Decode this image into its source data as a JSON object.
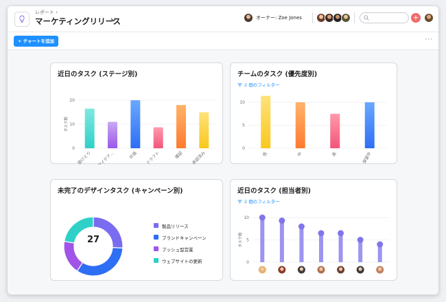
{
  "header": {
    "breadcrumb": "レポート",
    "title": "マーケティングリリース",
    "owner_label": "オーナー: Zoe Jones"
  },
  "toolbar": {
    "add_chart_label": "+ チャートを追加"
  },
  "colors": {
    "accent": "#1e90ff",
    "danger": "#f06a6a",
    "lollipop": "#9d94f1",
    "lollipop_head": "#8176e8"
  },
  "cards": {
    "stage": {
      "title": "近日のタスク (ステージ別)"
    },
    "priority": {
      "title": "チームのタスク (優先度別)",
      "filter": "2 個のフィルター"
    },
    "campaign": {
      "title": "未完了のデザインタスク (キャンペーン別)",
      "total": "27"
    },
    "assignee": {
      "title": "近日のタスク (担当者別)",
      "filter": "2 個のフィルター"
    }
  },
  "chart_data": [
    {
      "type": "bar",
      "title": "近日のタスク (ステージ別)",
      "ylabel": "タスク数",
      "ylim": [
        0,
        20
      ],
      "yticks": [
        0,
        10,
        20
      ],
      "categories": [
        "受けとり",
        "アイデア...",
        "計画",
        "ドラフト",
        "確認",
        "承認済み"
      ],
      "values": [
        16.5,
        11,
        20,
        8.7,
        18,
        15
      ],
      "colors": [
        [
          "#80e8e0",
          "#2fd0c8"
        ],
        [
          "#c9a8f5",
          "#9b59e6"
        ],
        [
          "#6aa8ff",
          "#2e6ef5"
        ],
        [
          "#ff9aaa",
          "#f2557a"
        ],
        [
          "#ffb36a",
          "#ff7a2f"
        ],
        [
          "#ffe27a",
          "#f9c81e"
        ]
      ],
      "grid": true
    },
    {
      "type": "bar",
      "title": "チームのタスク (優先度別)",
      "ylim": [
        0,
        10
      ],
      "yticks": [
        0,
        5,
        10
      ],
      "categories": [
        "低",
        "中",
        "高",
        "保留中"
      ],
      "values": [
        11.4,
        10,
        7.5,
        10
      ],
      "colors": [
        [
          "#ffe27a",
          "#f9c81e"
        ],
        [
          "#ffb36a",
          "#ff7a2f"
        ],
        [
          "#ff9aaa",
          "#f2557a"
        ],
        [
          "#6aa8ff",
          "#2e6ef5"
        ]
      ],
      "grid": true
    },
    {
      "type": "pie",
      "title": "未完了のデザインタスク (キャンペーン別)",
      "center_label": "27",
      "series": [
        {
          "name": "製品リリース",
          "value": 7,
          "color": "#7a6cf0"
        },
        {
          "name": "ブランドキャンペーン",
          "value": 9,
          "color": "#2e6ef5"
        },
        {
          "name": "プッシュ型営業",
          "value": 5,
          "color": "#a055e8"
        },
        {
          "name": "ウェブサイトの更新",
          "value": 6,
          "color": "#2fd0c8"
        }
      ]
    },
    {
      "type": "bar",
      "title": "近日のタスク (担当者別)",
      "ylabel": "タスク数",
      "ylim": [
        0,
        10
      ],
      "yticks": [
        0,
        5,
        10
      ],
      "values": [
        10,
        9.3,
        8,
        6.5,
        6.5,
        5,
        4
      ],
      "grid": true
    }
  ]
}
